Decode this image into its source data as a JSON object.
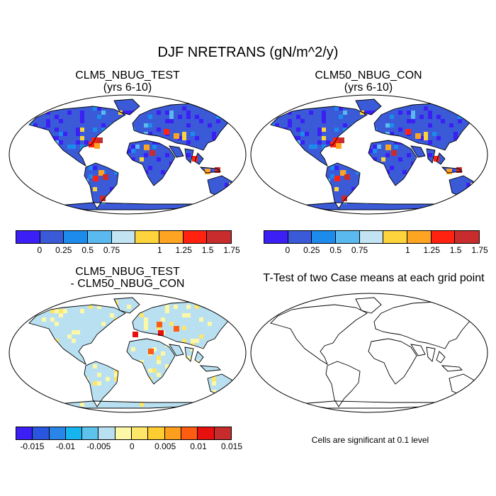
{
  "title": "DJF NRETRANS (gN/m^2/y)",
  "panels": {
    "test": {
      "line1": "CLM5_NBUG_TEST",
      "line2": "(yrs 6-10)"
    },
    "control": {
      "line1": "CLM50_NBUG_CON",
      "line2": "(yrs 6-10)"
    },
    "diff": {
      "line1": "CLM5_NBUG_TEST",
      "line2": "- CLM50_NBUG_CON"
    },
    "ttest": {
      "title": "T-Test of two Case means at each grid point",
      "note": "Cells are significant at 0.1 level"
    }
  },
  "colorbars": {
    "abs": {
      "colors": [
        "#3b1ff5",
        "#3a5ad8",
        "#1c8bec",
        "#5ab9ee",
        "#c2e4f2",
        "#fdd43c",
        "#fda422",
        "#ff2211",
        "#c92c2c"
      ],
      "labels": [
        "0",
        "0.25",
        "0.5",
        "0.75",
        "1",
        "1.25",
        "1.5",
        "1.75"
      ]
    },
    "diff": {
      "colors": [
        "#3b1ff5",
        "#2a55df",
        "#2a85e8",
        "#16b5f0",
        "#5ec3ec",
        "#b9e0f1",
        "#fdf7a8",
        "#fde668",
        "#fdcd32",
        "#fd9e1c",
        "#fd5c12",
        "#e8100f",
        "#c72c2c"
      ],
      "labels": [
        "-0.015",
        "-0.01",
        "-0.005",
        "0",
        "0.005",
        "0.01",
        "0.015"
      ]
    }
  }
}
